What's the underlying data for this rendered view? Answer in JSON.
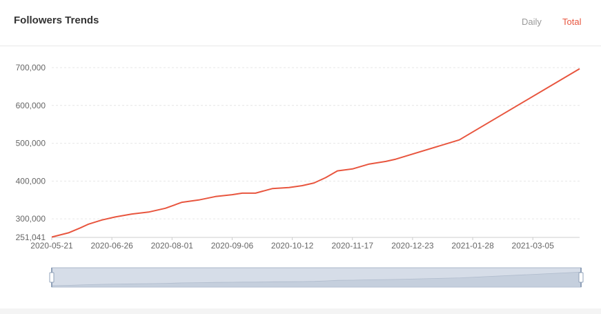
{
  "header": {
    "title": "Followers Trends",
    "daily_label": "Daily",
    "total_label": "Total"
  },
  "colors": {
    "line": "#e8553e",
    "active_toggle": "#e8553e",
    "inactive_toggle": "#999999",
    "grid": "#e6e6e6",
    "zoom_fill": "#d6dde8",
    "zoom_border": "#aab6c8"
  },
  "chart_data": {
    "type": "line",
    "title": "Followers Trends",
    "xlabel": "",
    "ylabel": "",
    "x_tick_labels": [
      "2020-05-21",
      "2020-06-26",
      "2020-08-01",
      "2020-09-06",
      "2020-10-12",
      "2020-11-17",
      "2020-12-23",
      "2021-01-28",
      "2021-03-05"
    ],
    "y_tick_labels": [
      "251,041",
      "300,000",
      "400,000",
      "500,000",
      "600,000",
      "700,000"
    ],
    "y_ticks": [
      251041,
      300000,
      400000,
      500000,
      600000,
      700000
    ],
    "ylim": [
      251041,
      700000
    ],
    "xlim": [
      "2020-05-21",
      "2021-04-02"
    ],
    "grid": true,
    "series": [
      {
        "x": [
          "2020-05-21",
          "2020-05-31",
          "2020-06-07",
          "2020-06-12",
          "2020-06-20",
          "2020-06-28",
          "2020-07-08",
          "2020-07-18",
          "2020-07-28",
          "2020-08-07",
          "2020-08-17",
          "2020-08-27",
          "2020-09-06",
          "2020-09-12",
          "2020-09-20",
          "2020-09-30",
          "2020-10-10",
          "2020-10-18",
          "2020-10-25",
          "2020-11-01",
          "2020-11-08",
          "2020-11-17",
          "2020-11-27",
          "2020-12-07",
          "2020-12-13",
          "2021-01-20",
          "2021-04-02"
        ],
        "y": [
          252000,
          263000,
          276000,
          286000,
          297000,
          305000,
          313000,
          318000,
          328000,
          344000,
          350000,
          359000,
          364000,
          368000,
          368000,
          380000,
          383000,
          388000,
          395000,
          409000,
          427000,
          432000,
          445000,
          452000,
          458000,
          509000,
          697000
        ]
      }
    ]
  },
  "zoom": {
    "start": 0,
    "end": 1
  }
}
